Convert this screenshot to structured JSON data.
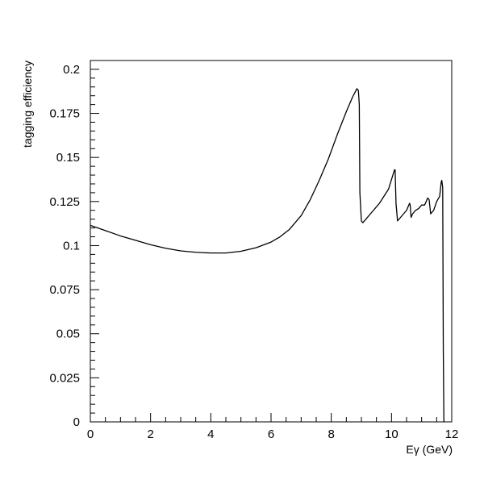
{
  "chart_data": {
    "type": "line",
    "title": "",
    "xlabel": "Eγ (GeV)",
    "ylabel": "tagging efficiency",
    "xlim": [
      0,
      12
    ],
    "ylim": [
      0,
      0.205
    ],
    "grid": false,
    "x_ticks": [
      0,
      2,
      4,
      6,
      8,
      10,
      12
    ],
    "y_ticks": [
      0,
      0.025,
      0.05,
      0.075,
      0.1,
      0.125,
      0.15,
      0.175,
      0.2
    ],
    "x_tick_labels": [
      "0",
      "2",
      "4",
      "6",
      "8",
      "10",
      "12"
    ],
    "y_tick_labels": [
      "0",
      "0.025",
      "0.05",
      "0.075",
      "0.1",
      "0.125",
      "0.15",
      "0.175",
      "0.2"
    ],
    "series": [
      {
        "name": "",
        "color": "#000000",
        "x": [
          0.0,
          0.5,
          1.0,
          1.5,
          2.0,
          2.5,
          3.0,
          3.5,
          4.0,
          4.5,
          5.0,
          5.5,
          6.0,
          6.3,
          6.6,
          7.0,
          7.3,
          7.6,
          7.9,
          8.2,
          8.5,
          8.7,
          8.85,
          8.9,
          8.93,
          8.95,
          9.0,
          9.05,
          9.3,
          9.6,
          9.9,
          10.1,
          10.12,
          10.15,
          10.2,
          10.3,
          10.5,
          10.6,
          10.62,
          10.65,
          10.7,
          10.8,
          10.9,
          11.0,
          11.1,
          11.2,
          11.25,
          11.3,
          11.4,
          11.5,
          11.6,
          11.65,
          11.67,
          11.7,
          11.72,
          11.74
        ],
        "y": [
          0.1115,
          0.1085,
          0.1055,
          0.103,
          0.1005,
          0.0985,
          0.097,
          0.0962,
          0.0958,
          0.0958,
          0.0968,
          0.0988,
          0.102,
          0.105,
          0.109,
          0.117,
          0.126,
          0.137,
          0.149,
          0.163,
          0.176,
          0.184,
          0.189,
          0.188,
          0.18,
          0.13,
          0.114,
          0.113,
          0.118,
          0.124,
          0.132,
          0.143,
          0.143,
          0.124,
          0.114,
          0.116,
          0.12,
          0.124,
          0.123,
          0.116,
          0.118,
          0.12,
          0.121,
          0.123,
          0.123,
          0.127,
          0.126,
          0.118,
          0.12,
          0.125,
          0.128,
          0.136,
          0.137,
          0.133,
          0.04,
          0.0
        ]
      }
    ]
  }
}
